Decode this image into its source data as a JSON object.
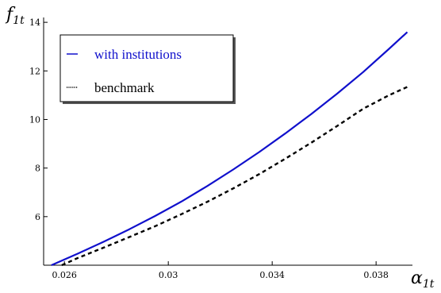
{
  "chart_data": {
    "type": "line",
    "xlabel": {
      "main": "α",
      "sub": "1t"
    },
    "ylabel": {
      "main": "f",
      "sub": "1t"
    },
    "xlim": [
      0.0252,
      0.0394
    ],
    "ylim": [
      4,
      14.2
    ],
    "x_ticks": [
      {
        "value": 0.026,
        "label": "0.026"
      },
      {
        "value": 0.03,
        "label": "0.03"
      },
      {
        "value": 0.034,
        "label": "0.034"
      },
      {
        "value": 0.038,
        "label": "0.038"
      }
    ],
    "y_ticks": [
      {
        "value": 6,
        "label": "6"
      },
      {
        "value": 8,
        "label": "8"
      },
      {
        "value": 10,
        "label": "10"
      },
      {
        "value": 12,
        "label": "12"
      },
      {
        "value": 14,
        "label": "14"
      }
    ],
    "legend_position": "top-left",
    "series": [
      {
        "name": "with institutions",
        "color": "#1010cc",
        "style": "solid",
        "x": [
          0.0255,
          0.0265,
          0.0275,
          0.0285,
          0.0295,
          0.0305,
          0.0315,
          0.0325,
          0.0335,
          0.0345,
          0.0355,
          0.0365,
          0.0375,
          0.0385,
          0.0392
        ],
        "y": [
          4.0,
          4.47,
          4.96,
          5.48,
          6.03,
          6.62,
          7.26,
          7.94,
          8.66,
          9.42,
          10.22,
          11.06,
          11.95,
          12.91,
          13.6
        ]
      },
      {
        "name": "benchmark",
        "color": "#000000",
        "style": "dotted",
        "x": [
          0.0259,
          0.0265,
          0.0275,
          0.0285,
          0.0295,
          0.0305,
          0.0315,
          0.0325,
          0.0335,
          0.0345,
          0.0355,
          0.0365,
          0.0375,
          0.0385,
          0.0392
        ],
        "y": [
          4.0,
          4.29,
          4.72,
          5.16,
          5.61,
          6.1,
          6.61,
          7.16,
          7.75,
          8.38,
          9.04,
          9.73,
          10.44,
          11.0,
          11.34
        ]
      }
    ]
  }
}
